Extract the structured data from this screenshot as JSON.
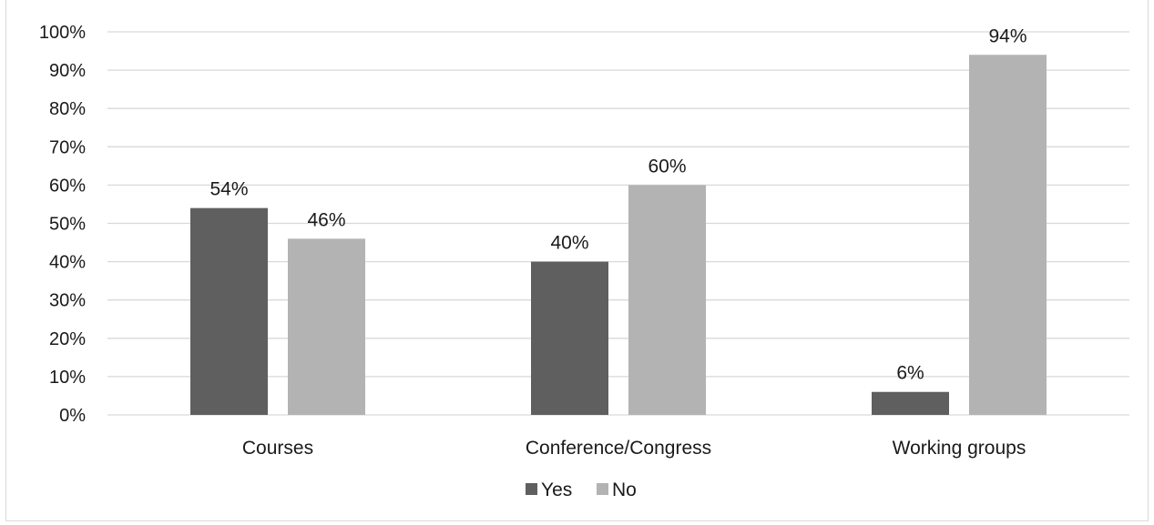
{
  "chart_data": {
    "type": "bar",
    "title": "",
    "xlabel": "",
    "ylabel": "",
    "categories": [
      "Courses",
      "Conference/Congress",
      "Working groups"
    ],
    "series": [
      {
        "name": "Yes",
        "values": [
          54,
          40,
          6
        ],
        "color": "#5f5f5f"
      },
      {
        "name": "No",
        "values": [
          46,
          60,
          94
        ],
        "color": "#b3b3b3"
      }
    ],
    "ylim": [
      0,
      100
    ],
    "yticks": [
      0,
      10,
      20,
      30,
      40,
      50,
      60,
      70,
      80,
      90,
      100
    ],
    "tick_suffix": "%",
    "data_label_suffix": "%",
    "grid": true,
    "gridline_color": "#d9d9d9",
    "legend_position": "bottom"
  }
}
